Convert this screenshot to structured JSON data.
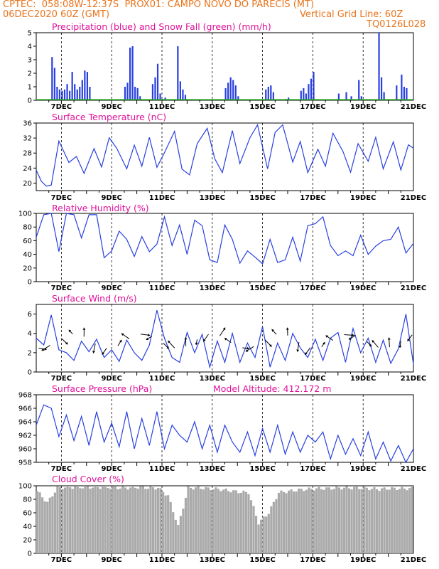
{
  "header": {
    "line1": "CPTEC:  058:08W-12:37S  PROX01: CAMPO NOVO DO PARECIS (MT)",
    "line2_left": "06DEC2020 60Z (GMT)",
    "line2_right": "Vertical Grid Line: 60Z",
    "line3_right": "TQ0126L028"
  },
  "colors": {
    "header": "#e8741c",
    "titles": "#e0109a",
    "series": "#2840e0",
    "snow": "#20a020",
    "cloud": "#aaaaaa",
    "wind_arrow": "#000000"
  },
  "chart_data": [
    {
      "type": "bar",
      "title": "Precipitation (blue) and Snow Fall (green) (mm/h)",
      "x_ticks": [
        "7DEC",
        "9DEC",
        "11DEC",
        "13DEC",
        "15DEC",
        "17DEC",
        "19DEC",
        "21DEC"
      ],
      "x_range": [
        "06DEC2020",
        "21DEC2020"
      ],
      "ylim": [
        0,
        5
      ],
      "y_ticks": [
        "0",
        "1",
        "2",
        "3",
        "4",
        "5"
      ],
      "series": [
        {
          "name": "Precipitation",
          "x": [
            6.6,
            6.7,
            6.8,
            6.9,
            7.0,
            7.1,
            7.2,
            7.3,
            7.4,
            7.5,
            7.6,
            7.7,
            7.8,
            7.9,
            8.0,
            8.1,
            9.5,
            9.6,
            9.7,
            9.8,
            9.9,
            10.0,
            10.1,
            10.6,
            10.7,
            10.8,
            10.9,
            11.0,
            11.1,
            11.6,
            11.7,
            11.8,
            11.9,
            13.5,
            13.6,
            13.7,
            13.8,
            13.9,
            14.0,
            15.1,
            15.2,
            15.3,
            15.4,
            15.9,
            16.0,
            16.5,
            16.6,
            16.7,
            16.8,
            16.9,
            17.0,
            18.0,
            18.3,
            18.5,
            18.8,
            18.9,
            19.6,
            19.7,
            19.8,
            20.3,
            20.5,
            20.6,
            20.7
          ],
          "values": [
            3.2,
            2.4,
            1.0,
            0.8,
            0.7,
            0.8,
            1.2,
            0.7,
            2.1,
            1.2,
            0.8,
            1.0,
            1.5,
            2.2,
            2.1,
            1.0,
            1.0,
            1.3,
            3.9,
            4.0,
            1.0,
            0.9,
            0.3,
            1.2,
            1.7,
            2.7,
            0.5,
            0.1,
            0.2,
            4.0,
            1.4,
            0.8,
            0.4,
            0.9,
            1.3,
            1.7,
            1.5,
            1.1,
            0.3,
            0.8,
            1.0,
            1.1,
            0.6,
            0.1,
            0.2,
            0.7,
            0.9,
            0.5,
            1.2,
            1.6,
            2.1,
            0.5,
            0.6,
            0.3,
            1.5,
            0.3,
            5.0,
            1.7,
            0.6,
            1.1,
            1.9,
            1.0,
            0.9
          ]
        },
        {
          "name": "Snow Fall",
          "values": [
            0
          ]
        }
      ]
    },
    {
      "type": "line",
      "title": "Surface Temperature (nC)",
      "ylim": [
        18,
        36
      ],
      "y_ticks": [
        "20",
        "24",
        "28",
        "32",
        "36"
      ],
      "x_ticks": [
        "7DEC",
        "9DEC",
        "11DEC",
        "13DEC",
        "15DEC",
        "17DEC",
        "19DEC",
        "21DEC"
      ],
      "x": [
        6.0,
        6.2,
        6.4,
        6.6,
        6.9,
        7.3,
        7.6,
        7.9,
        8.3,
        8.6,
        8.9,
        9.2,
        9.6,
        9.9,
        10.2,
        10.5,
        10.8,
        11.1,
        11.5,
        11.8,
        12.1,
        12.4,
        12.8,
        13.1,
        13.4,
        13.8,
        14.1,
        14.5,
        14.8,
        15.2,
        15.5,
        15.8,
        16.2,
        16.5,
        16.8,
        17.2,
        17.5,
        17.8,
        18.2,
        18.5,
        18.8,
        19.2,
        19.5,
        19.8,
        20.2,
        20.5,
        20.8,
        21.0
      ],
      "values": [
        23.5,
        20.5,
        19.2,
        19.5,
        31.2,
        25.5,
        27.1,
        22.6,
        29.2,
        24.3,
        32.1,
        29.3,
        23.8,
        30.1,
        24.5,
        32.2,
        24.2,
        28.1,
        33.8,
        23.7,
        22.2,
        30.5,
        34.6,
        26.5,
        22.8,
        34.0,
        25.2,
        32.1,
        35.5,
        23.8,
        33.5,
        35.5,
        25.6,
        31.1,
        22.8,
        29.0,
        24.5,
        33.3,
        28.4,
        22.9,
        30.5,
        25.8,
        32.2,
        23.8,
        31.0,
        23.5,
        30.2,
        29.3
      ]
    },
    {
      "type": "line",
      "title": "Relative Humidity (%)",
      "ylim": [
        0,
        100
      ],
      "y_ticks": [
        "0",
        "20",
        "40",
        "60",
        "80",
        "100"
      ],
      "x_ticks": [
        "7DEC",
        "9DEC",
        "11DEC",
        "13DEC",
        "15DEC",
        "17DEC",
        "19DEC",
        "21DEC"
      ],
      "x": [
        6.0,
        6.3,
        6.6,
        6.9,
        7.2,
        7.5,
        7.8,
        8.1,
        8.4,
        8.7,
        9.0,
        9.3,
        9.6,
        9.9,
        10.2,
        10.5,
        10.8,
        11.1,
        11.4,
        11.7,
        12.0,
        12.3,
        12.6,
        12.9,
        13.2,
        13.5,
        13.8,
        14.1,
        14.4,
        14.7,
        15.0,
        15.3,
        15.6,
        15.9,
        16.2,
        16.5,
        16.8,
        17.1,
        17.4,
        17.7,
        18.0,
        18.3,
        18.6,
        18.9,
        19.2,
        19.5,
        19.8,
        20.1,
        20.4,
        20.7,
        21.0
      ],
      "values": [
        65,
        98,
        100,
        44,
        100,
        98,
        64,
        98,
        98,
        35,
        45,
        74,
        62,
        37,
        66,
        44,
        55,
        95,
        53,
        83,
        40,
        90,
        82,
        32,
        28,
        83,
        62,
        27,
        45,
        36,
        26,
        62,
        28,
        32,
        65,
        30,
        82,
        85,
        95,
        53,
        38,
        45,
        38,
        68,
        40,
        52,
        60,
        62,
        80,
        42,
        56
      ]
    },
    {
      "type": "line",
      "title": "Surface Wind (m/s)",
      "ylim": [
        0,
        7
      ],
      "y_ticks": [
        "0",
        "2",
        "4",
        "6"
      ],
      "x_ticks": [
        "7DEC",
        "9DEC",
        "11DEC",
        "13DEC",
        "15DEC",
        "17DEC",
        "19DEC",
        "21DEC"
      ],
      "x": [
        6.0,
        6.3,
        6.6,
        6.9,
        7.2,
        7.5,
        7.8,
        8.1,
        8.4,
        8.7,
        9.0,
        9.3,
        9.6,
        9.9,
        10.2,
        10.5,
        10.8,
        11.1,
        11.4,
        11.7,
        12.0,
        12.3,
        12.6,
        12.9,
        13.2,
        13.5,
        13.8,
        14.1,
        14.4,
        14.7,
        15.0,
        15.3,
        15.6,
        15.9,
        16.2,
        16.5,
        16.8,
        17.1,
        17.4,
        17.7,
        18.0,
        18.3,
        18.6,
        18.9,
        19.2,
        19.5,
        19.8,
        20.1,
        20.4,
        20.7,
        21.0
      ],
      "values": [
        3.5,
        2.8,
        5.9,
        2.3,
        2.0,
        1.2,
        3.2,
        2.1,
        3.4,
        1.5,
        2.3,
        1.1,
        3.3,
        2.0,
        1.2,
        2.8,
        6.4,
        3.5,
        1.5,
        1.0,
        4.1,
        2.0,
        3.9,
        0.5,
        3.2,
        1.0,
        4.0,
        1.0,
        3.0,
        1.5,
        4.7,
        0.5,
        3.0,
        1.2,
        4.0,
        2.5,
        1.5,
        3.4,
        1.2,
        3.5,
        4.1,
        1.0,
        4.5,
        2.0,
        3.5,
        1.0,
        3.3,
        0.9,
        2.4,
        6.0,
        0.8
      ]
    },
    {
      "type": "line",
      "title": "Surface Pressure (hPa)",
      "annotation": "Model Altitude: 412.172 m",
      "ylim": [
        958,
        968
      ],
      "y_ticks": [
        "958",
        "960",
        "962",
        "964",
        "966",
        "968"
      ],
      "x_ticks": [
        "7DEC",
        "9DEC",
        "11DEC",
        "13DEC",
        "15DEC",
        "17DEC",
        "19DEC",
        "21DEC"
      ],
      "x": [
        6.0,
        6.3,
        6.6,
        6.9,
        7.2,
        7.5,
        7.8,
        8.1,
        8.4,
        8.7,
        9.0,
        9.3,
        9.6,
        9.9,
        10.2,
        10.5,
        10.8,
        11.1,
        11.4,
        11.7,
        12.0,
        12.3,
        12.6,
        12.9,
        13.2,
        13.5,
        13.8,
        14.1,
        14.4,
        14.7,
        15.0,
        15.3,
        15.6,
        15.9,
        16.2,
        16.5,
        16.8,
        17.1,
        17.4,
        17.7,
        18.0,
        18.3,
        18.6,
        18.9,
        19.2,
        19.5,
        19.8,
        20.1,
        20.4,
        20.7,
        21.0
      ],
      "values": [
        963.5,
        966.5,
        966.0,
        961.8,
        965.0,
        961.2,
        964.8,
        960.5,
        965.5,
        961.0,
        963.8,
        960.3,
        965.5,
        960.0,
        964.5,
        960.5,
        965.5,
        960.0,
        963.5,
        962.0,
        961.0,
        964.0,
        960.0,
        963.5,
        959.5,
        963.5,
        961.0,
        959.5,
        962.5,
        959.0,
        963.0,
        959.5,
        963.5,
        959.2,
        962.5,
        959.5,
        962.0,
        961.0,
        962.5,
        958.5,
        962.0,
        959.2,
        961.5,
        959.0,
        962.5,
        958.5,
        961.0,
        958.2,
        960.5,
        958.0,
        960.0
      ]
    },
    {
      "type": "bar",
      "title": "Cloud Cover (%)",
      "ylim": [
        0,
        100
      ],
      "y_ticks": [
        "0",
        "20",
        "40",
        "60",
        "80",
        "100"
      ],
      "x_ticks": [
        "7DEC",
        "9DEC",
        "11DEC",
        "13DEC",
        "15DEC",
        "17DEC",
        "19DEC",
        "21DEC"
      ],
      "x": [
        6.0,
        6.4,
        6.8,
        7.2,
        7.6,
        8.0,
        8.4,
        8.8,
        9.2,
        9.6,
        10.0,
        10.4,
        10.8,
        11.2,
        11.6,
        12.0,
        12.4,
        12.8,
        13.2,
        13.6,
        14.0,
        14.4,
        14.8,
        15.2,
        15.6,
        16.0,
        16.4,
        16.8,
        17.2,
        17.6,
        18.0,
        18.4,
        18.8,
        19.2,
        19.6,
        20.0,
        20.4,
        20.8
      ],
      "values": [
        92,
        75,
        97,
        98,
        98,
        98,
        98,
        98,
        97,
        97,
        98,
        97,
        97,
        85,
        40,
        97,
        97,
        96,
        95,
        93,
        91,
        90,
        45,
        60,
        90,
        92,
        94,
        95,
        96,
        96,
        97,
        97,
        97,
        96,
        95,
        96,
        96,
        96
      ]
    }
  ]
}
